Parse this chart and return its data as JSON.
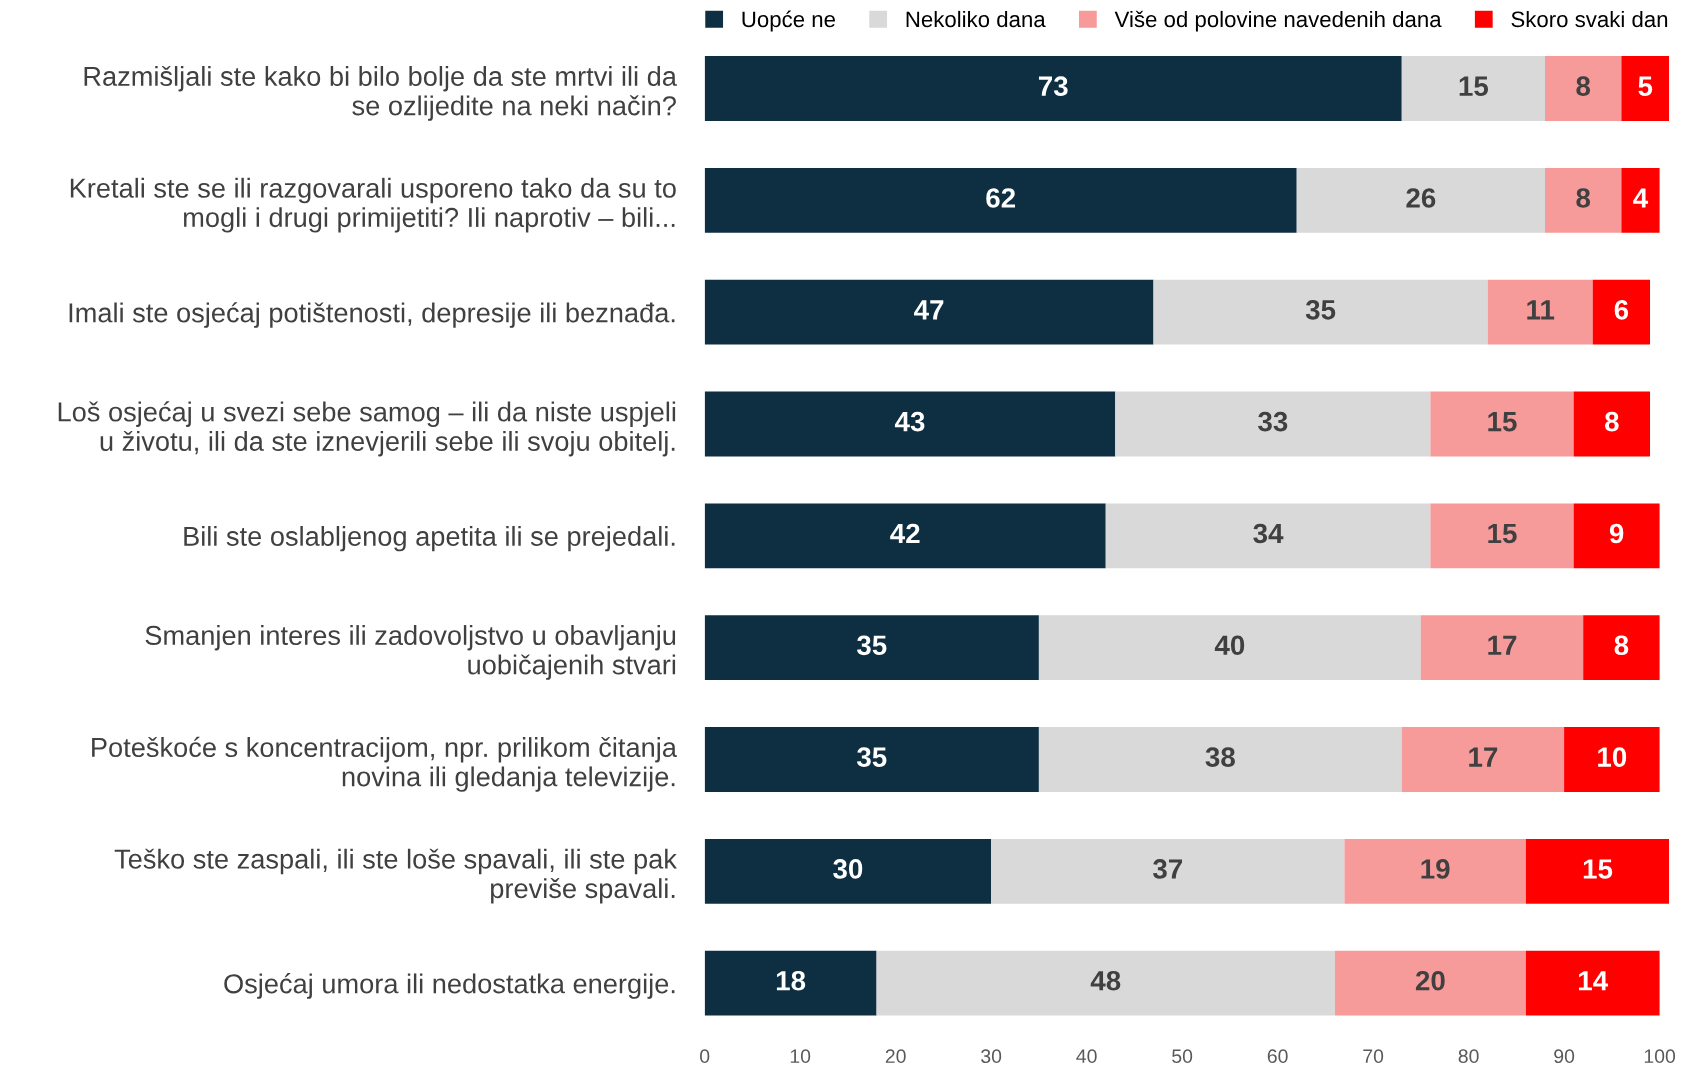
{
  "chart_data": {
    "type": "bar",
    "orientation": "horizontal",
    "stacked": true,
    "data_labels": true,
    "legend": "top",
    "grid": false,
    "categories": [
      "Razmišljali ste kako bi bilo bolje da ste mrtvi ili da\nse ozlijedite na neki način?",
      "Kretali ste se ili razgovarali usporeno tako da su to\nmogli i drugi primijetiti? Ili naprotiv – bili...",
      "Imali ste osjećaj potištenosti, depresije ili beznađa.",
      "Loš osjećaj u svezi sebe samog – ili da niste uspjeli\nu životu, ili da ste iznevjerili sebe ili svoju obitelj.",
      "Bili ste oslabljenog apetita ili se prejedali.",
      "Smanjen interes ili zadovoljstvo u obavljanju\nuobičajenih stvari",
      "Poteškoće s koncentracijom, npr. prilikom čitanja\nnovina ili gledanja televizije.",
      "Teško ste zaspali, ili ste loše spavali, ili ste pak\npreviše spavali.",
      "Osjećaj umora ili nedostatka energije."
    ],
    "series": [
      {
        "name": "Uopće ne",
        "color": "#0e2f42",
        "values": [
          73,
          62,
          47,
          43,
          42,
          35,
          35,
          30,
          18
        ]
      },
      {
        "name": "Nekoliko dana",
        "color": "#d9d9d9",
        "values": [
          15,
          26,
          35,
          33,
          34,
          40,
          38,
          37,
          48
        ]
      },
      {
        "name": "Više od polovine navedenih dana",
        "color": "#f79a9a",
        "values": [
          8,
          8,
          11,
          15,
          15,
          17,
          17,
          19,
          20
        ]
      },
      {
        "name": "Skoro svaki dan",
        "color": "#ff0000",
        "values": [
          5,
          4,
          6,
          8,
          9,
          8,
          10,
          15,
          14
        ]
      }
    ],
    "xlim": [
      0,
      101
    ],
    "xticks": [
      0,
      10,
      20,
      30,
      40,
      50,
      60,
      70,
      80,
      90,
      100
    ]
  }
}
